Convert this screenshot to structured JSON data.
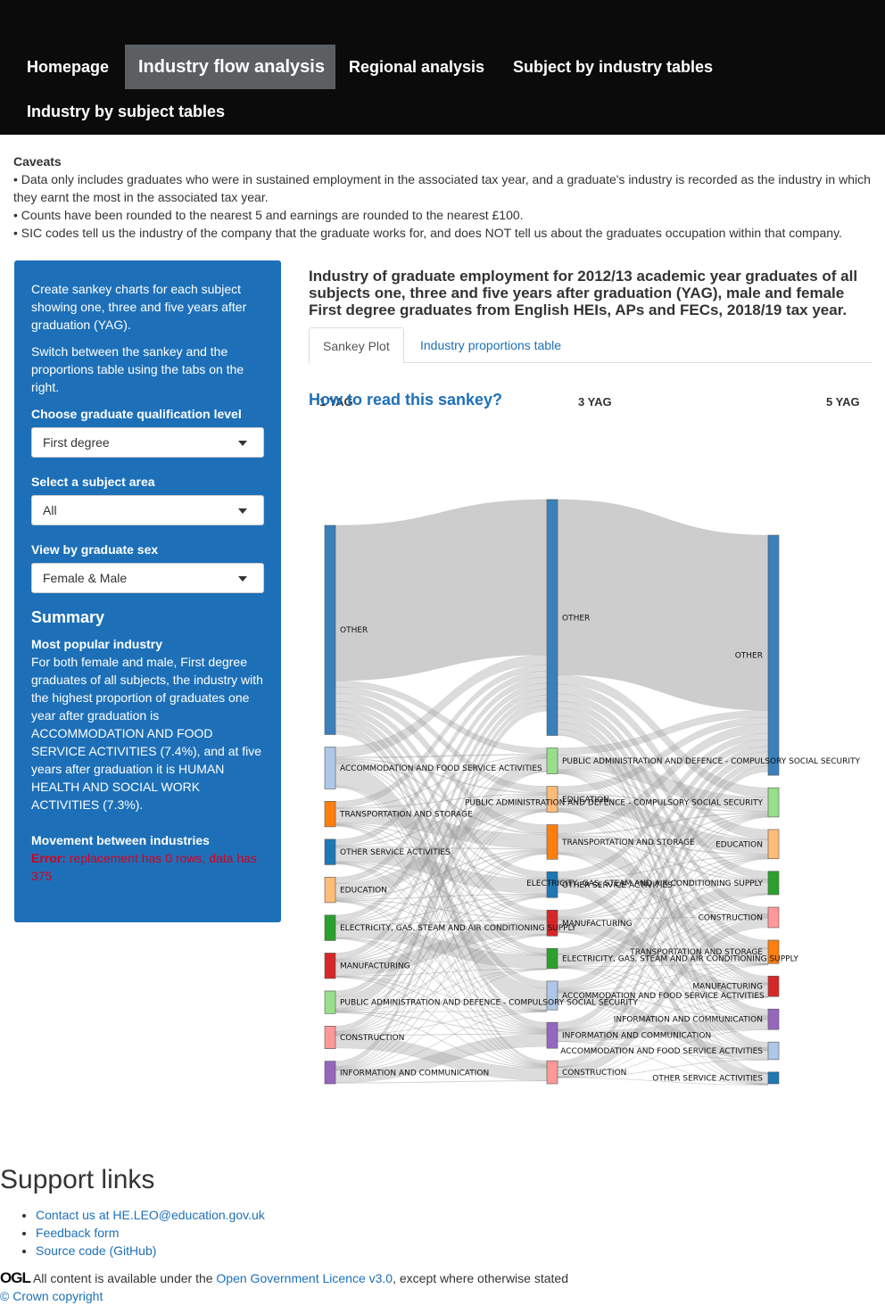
{
  "nav": {
    "items": [
      {
        "label": "Homepage"
      },
      {
        "label": "Industry flow analysis"
      },
      {
        "label": "Regional analysis"
      },
      {
        "label": "Subject by industry tables"
      },
      {
        "label": "Industry by subject tables"
      }
    ]
  },
  "caveats": {
    "title": "Caveats",
    "lines": [
      "• Data only includes graduates who were in sustained employment in the associated tax year, and a graduate's industry is recorded as the industry in which they earnt the most in the associated tax year.",
      "• Counts have been rounded to the nearest 5 and earnings are rounded to the nearest £100.",
      "• SIC codes tell us the industry of the company that the graduate works for, and does NOT tell us about the graduates occupation within that company."
    ]
  },
  "sidebar": {
    "intro1": "Create sankey charts for each subject showing one, three and five years after graduation (YAG).",
    "intro2": "Switch between the sankey and the proportions table using the tabs on the right.",
    "qual_label": "Choose graduate qualification level",
    "qual_value": "First degree",
    "subject_label": "Select a subject area",
    "subject_value": "All",
    "sex_label": "View by graduate sex",
    "sex_value": "Female & Male",
    "summary_title": "Summary",
    "popular_title": "Most popular industry",
    "popular_text": "For both female and male, First degree graduates of all subjects, the industry with the highest proportion of graduates one year after graduation is ACCOMMODATION AND FOOD SERVICE ACTIVITIES (7.4%), and at five years after graduation it is HUMAN HEALTH AND SOCIAL WORK ACTIVITIES (7.3%).",
    "movement_title": "Movement between industries",
    "error_label": "Error:",
    "error_text": " replacement has 0 rows, data has 375"
  },
  "main": {
    "title": "Industry of graduate employment for 2012/13 academic year graduates of all subjects one, three and five years after graduation (YAG), male and female First degree graduates from English HEIs, APs and FECs, 2018/19 tax year.",
    "tab_sankey": "Sankey Plot",
    "tab_table": "Industry proportions table",
    "howto": "How to read this sankey?"
  },
  "chart_data": {
    "type": "sankey",
    "columns": [
      "1 YAG",
      "3 YAG",
      "5 YAG"
    ],
    "colors": {
      "OTHER": "#3a80ba",
      "ACCOMMODATION AND FOOD SERVICE ACTIVITIES": "#aec7e8",
      "TRANSPORTATION AND STORAGE": "#ff7f0e",
      "OTHER SERVICE ACTIVITIES": "#1f77b4",
      "EDUCATION": "#ffbb78",
      "ELECTRICITY, GAS, STEAM AND AIR CONDITIONING SUPPLY": "#2ca02c",
      "MANUFACTURING": "#d62728",
      "PUBLIC ADMINISTRATION AND DEFENCE - COMPULSORY SOCIAL SECURITY": "#98df8a",
      "CONSTRUCTION": "#ff9896",
      "INFORMATION AND COMMUNICATION": "#9467bd"
    },
    "nodes": [
      {
        "column": 0,
        "name": "OTHER",
        "share": 0.37
      },
      {
        "column": 0,
        "name": "ACCOMMODATION AND FOOD SERVICE ACTIVITIES",
        "share": 0.074
      },
      {
        "column": 0,
        "name": "TRANSPORTATION AND STORAGE",
        "share": 0.045
      },
      {
        "column": 0,
        "name": "OTHER SERVICE ACTIVITIES",
        "share": 0.045
      },
      {
        "column": 0,
        "name": "EDUCATION",
        "share": 0.045
      },
      {
        "column": 0,
        "name": "ELECTRICITY, GAS, STEAM AND AIR CONDITIONING SUPPLY",
        "share": 0.045
      },
      {
        "column": 0,
        "name": "MANUFACTURING",
        "share": 0.045
      },
      {
        "column": 0,
        "name": "PUBLIC ADMINISTRATION AND DEFENCE - COMPULSORY SOCIAL SECURITY",
        "share": 0.04
      },
      {
        "column": 0,
        "name": "CONSTRUCTION",
        "share": 0.04
      },
      {
        "column": 0,
        "name": "INFORMATION AND COMMUNICATION",
        "share": 0.04
      },
      {
        "column": 1,
        "name": "OTHER",
        "share": 0.41
      },
      {
        "column": 1,
        "name": "PUBLIC ADMINISTRATION AND DEFENCE - COMPULSORY SOCIAL SECURITY",
        "share": 0.045
      },
      {
        "column": 1,
        "name": "EDUCATION",
        "share": 0.045
      },
      {
        "column": 1,
        "name": "TRANSPORTATION AND STORAGE",
        "share": 0.06
      },
      {
        "column": 1,
        "name": "OTHER SERVICE ACTIVITIES",
        "share": 0.045
      },
      {
        "column": 1,
        "name": "MANUFACTURING",
        "share": 0.045
      },
      {
        "column": 1,
        "name": "ELECTRICITY, GAS, STEAM AND AIR CONDITIONING SUPPLY",
        "share": 0.035
      },
      {
        "column": 1,
        "name": "ACCOMMODATION AND FOOD SERVICE ACTIVITIES",
        "share": 0.05
      },
      {
        "column": 1,
        "name": "INFORMATION AND COMMUNICATION",
        "share": 0.045
      },
      {
        "column": 1,
        "name": "CONSTRUCTION",
        "share": 0.04
      },
      {
        "column": 2,
        "name": "OTHER",
        "share": 0.41
      },
      {
        "column": 2,
        "name": "PUBLIC ADMINISTRATION AND DEFENCE - COMPULSORY SOCIAL SECURITY",
        "share": 0.05
      },
      {
        "column": 2,
        "name": "EDUCATION",
        "share": 0.05
      },
      {
        "column": 2,
        "name": "ELECTRICITY, GAS, STEAM AND AIR CONDITIONING SUPPLY",
        "share": 0.04
      },
      {
        "column": 2,
        "name": "CONSTRUCTION",
        "share": 0.035
      },
      {
        "column": 2,
        "name": "TRANSPORTATION AND STORAGE",
        "share": 0.04
      },
      {
        "column": 2,
        "name": "MANUFACTURING",
        "share": 0.035
      },
      {
        "column": 2,
        "name": "INFORMATION AND COMMUNICATION",
        "share": 0.035
      },
      {
        "column": 2,
        "name": "ACCOMMODATION AND FOOD SERVICE ACTIVITIES",
        "share": 0.03
      },
      {
        "column": 2,
        "name": "OTHER SERVICE ACTIVITIES",
        "share": 0.02
      }
    ]
  },
  "support": {
    "title": "Support links",
    "contact_prefix": "Contact us at ",
    "contact_email": "HE.LEO@education.gov.uk",
    "feedback": "Feedback form",
    "source": "Source code (GitHub)"
  },
  "footer": {
    "ogl_logo": "OGL",
    "licence_prefix": " All content is available under the ",
    "licence_link": "Open Government Licence v3.0",
    "licence_suffix": ", except where otherwise stated",
    "copyright": "© Crown copyright"
  }
}
